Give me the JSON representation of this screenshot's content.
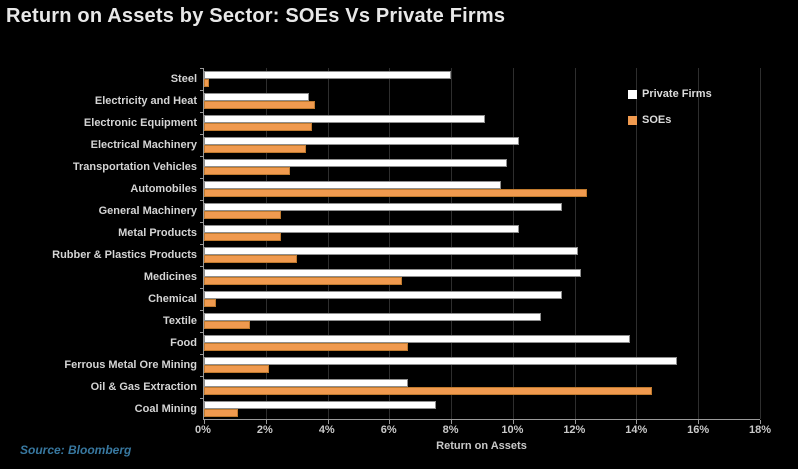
{
  "title": "Return on Assets by Sector: SOEs Vs Private Firms",
  "source": "Source: Bloomberg",
  "colors": {
    "background": "#000000",
    "private_firms_bar": "#ffffff",
    "soe_bar": "#f09a4f",
    "title_text": "#e8e8e8",
    "axis_text": "#c9c9c9",
    "gridline": "#2e2e2e",
    "source_text": "#3878a0"
  },
  "chart_data": {
    "type": "bar",
    "orientation": "horizontal",
    "title": "Return on Assets by Sector: SOEs Vs Private Firms",
    "xlabel": "Return on Assets",
    "xlim": [
      0,
      18
    ],
    "x_ticks": [
      "0%",
      "2%",
      "4%",
      "6%",
      "8%",
      "10%",
      "12%",
      "14%",
      "16%",
      "18%"
    ],
    "grid": true,
    "legend_position": "inside-top-right",
    "categories": [
      "Steel",
      "Electricity and Heat",
      "Electronic Equipment",
      "Electrical Machinery",
      "Transportation Vehicles",
      "Automobiles",
      "General Machinery",
      "Metal Products",
      "Rubber & Plastics Products",
      "Medicines",
      "Chemical",
      "Textile",
      "Food",
      "Ferrous Metal Ore Mining",
      "Oil & Gas Extraction",
      "Coal Mining"
    ],
    "series": [
      {
        "name": "Private Firms",
        "color": "#ffffff",
        "values": [
          8.0,
          3.4,
          9.1,
          10.2,
          9.8,
          9.6,
          11.6,
          10.2,
          12.1,
          12.2,
          11.6,
          10.9,
          13.8,
          15.3,
          6.6,
          7.5
        ]
      },
      {
        "name": "SOEs",
        "color": "#f09a4f",
        "values": [
          0.15,
          3.6,
          3.5,
          3.3,
          2.8,
          12.4,
          2.5,
          2.5,
          3.0,
          6.4,
          0.4,
          1.5,
          6.6,
          2.1,
          14.5,
          1.1
        ]
      }
    ]
  }
}
